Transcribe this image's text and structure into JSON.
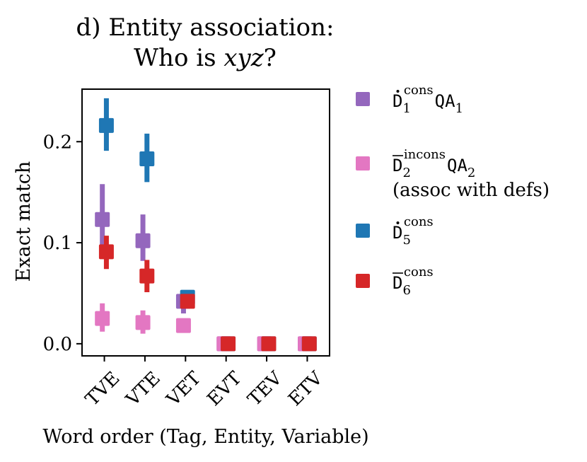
{
  "chart_data": {
    "type": "scatter",
    "title": {
      "prefix": "d) Entity association:",
      "line2_pre": "Who is ",
      "line2_var": "xyz",
      "line2_post": "?"
    },
    "xlabel": "Word order (Tag, Entity, Variable)",
    "ylabel": "Exact match",
    "ylim": [
      -0.012,
      0.252
    ],
    "yticks": [
      0.0,
      0.1,
      0.2
    ],
    "ytick_labels": [
      "0.0",
      "0.1",
      "0.2"
    ],
    "categories": [
      "TVE",
      "VTE",
      "VET",
      "EVT",
      "TEV",
      "ETV"
    ],
    "grid": false,
    "legend_position": "outside-right",
    "series": [
      {
        "name": "D1 cons QA1",
        "legend": {
          "base": "D",
          "accent": "dot",
          "sub": "1",
          "sup": "cons",
          "suffix": "QA",
          "suffix_sub": "1",
          "extra": ""
        },
        "color": "#9467bd",
        "offset": -0.05,
        "values": [
          0.123,
          0.102,
          0.042,
          0.0,
          0.0,
          0.0
        ],
        "lower": [
          0.098,
          0.082,
          0.03,
          0.0,
          0.0,
          0.0
        ],
        "upper": [
          0.158,
          0.128,
          0.052,
          0.0,
          0.0,
          0.0
        ]
      },
      {
        "name": "D2 incons QA2 (assoc with defs)",
        "legend": {
          "base": "D",
          "accent": "bar",
          "sub": "2",
          "sup": "incons",
          "suffix": "QA",
          "suffix_sub": "2",
          "extra": "(assoc with defs)"
        },
        "color": "#e377c2",
        "offset": -0.05,
        "values": [
          0.025,
          0.021,
          0.018,
          0.0,
          0.0,
          0.0
        ],
        "lower": [
          0.012,
          0.01,
          0.014,
          0.0,
          0.0,
          0.0
        ],
        "upper": [
          0.04,
          0.033,
          0.022,
          0.0,
          0.0,
          0.0
        ]
      },
      {
        "name": "D5 cons",
        "legend": {
          "base": "D",
          "accent": "dot",
          "sub": "5",
          "sup": "cons",
          "suffix": "",
          "suffix_sub": "",
          "extra": ""
        },
        "color": "#1f77b4",
        "offset": 0.05,
        "values": [
          0.216,
          0.183,
          0.046,
          0.0,
          0.0,
          0.0
        ],
        "lower": [
          0.191,
          0.16,
          0.04,
          0.0,
          0.0,
          0.0
        ],
        "upper": [
          0.243,
          0.208,
          0.052,
          0.0,
          0.0,
          0.0
        ]
      },
      {
        "name": "D6 cons",
        "legend": {
          "base": "D",
          "accent": "bar",
          "sub": "6",
          "sup": "cons",
          "suffix": "",
          "suffix_sub": "",
          "extra": ""
        },
        "color": "#d62728",
        "offset": 0.05,
        "values": [
          0.091,
          0.067,
          0.042,
          0.0,
          0.0,
          0.0
        ],
        "lower": [
          0.074,
          0.051,
          0.036,
          0.0,
          0.0,
          0.0
        ],
        "upper": [
          0.107,
          0.083,
          0.048,
          0.0,
          0.0,
          0.0
        ]
      }
    ]
  }
}
